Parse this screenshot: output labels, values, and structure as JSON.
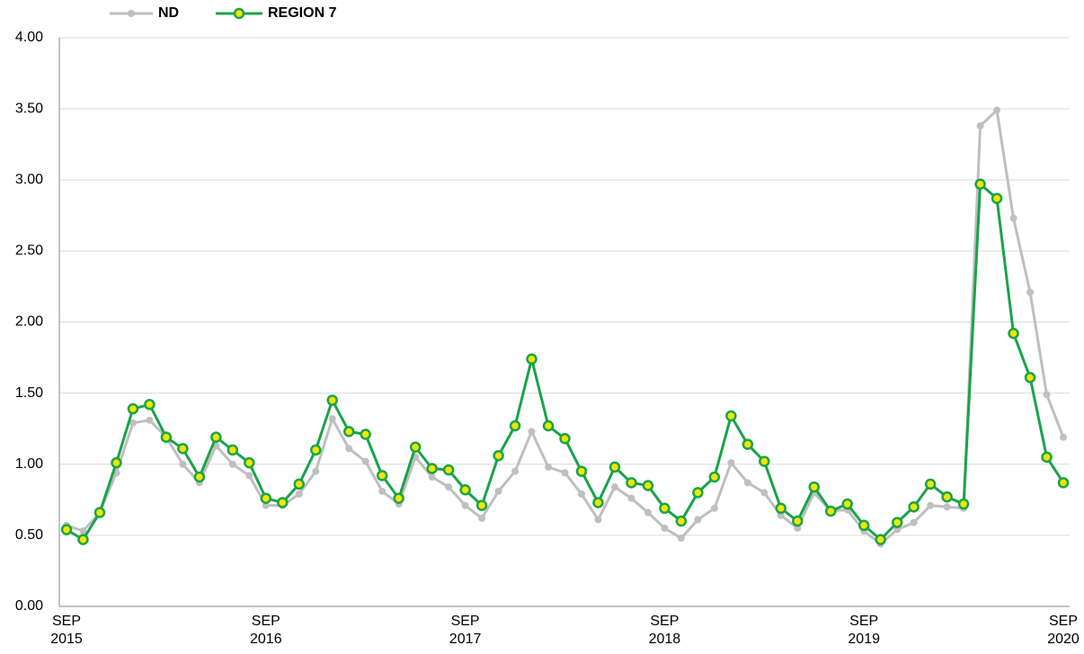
{
  "chart_data": {
    "type": "line",
    "categories": [
      "SEP\n2015",
      null,
      null,
      null,
      null,
      null,
      null,
      null,
      null,
      null,
      null,
      null,
      "SEP\n2016",
      null,
      null,
      null,
      null,
      null,
      null,
      null,
      null,
      null,
      null,
      null,
      "SEP\n2017",
      null,
      null,
      null,
      null,
      null,
      null,
      null,
      null,
      null,
      null,
      null,
      "SEP\n2018",
      null,
      null,
      null,
      null,
      null,
      null,
      null,
      null,
      null,
      null,
      null,
      "SEP\n2019",
      null,
      null,
      null,
      null,
      null,
      null,
      null,
      null,
      null,
      null,
      null,
      "SEP\n2020"
    ],
    "series": [
      {
        "name": "ND",
        "color": "#bfbfbf",
        "values": [
          0.57,
          0.53,
          0.66,
          0.94,
          1.29,
          1.31,
          1.19,
          1.0,
          0.87,
          1.13,
          1.0,
          0.92,
          0.71,
          0.71,
          0.79,
          0.95,
          1.32,
          1.11,
          1.02,
          0.81,
          0.72,
          1.05,
          0.91,
          0.84,
          0.71,
          0.62,
          0.81,
          0.95,
          1.23,
          0.98,
          0.94,
          0.79,
          0.61,
          0.84,
          0.76,
          0.66,
          0.55,
          0.48,
          0.61,
          0.69,
          1.01,
          0.87,
          0.8,
          0.64,
          0.55,
          0.8,
          0.67,
          0.68,
          0.53,
          0.44,
          0.54,
          0.59,
          0.71,
          0.7,
          0.69,
          3.38,
          3.49,
          2.73,
          2.21,
          1.49,
          1.19
        ]
      },
      {
        "name": "REGION 7",
        "color": "#1aa34a",
        "values": [
          0.54,
          0.47,
          0.66,
          1.01,
          1.39,
          1.42,
          1.19,
          1.11,
          0.91,
          1.19,
          1.1,
          1.01,
          0.76,
          0.73,
          0.86,
          1.1,
          1.45,
          1.23,
          1.21,
          0.92,
          0.76,
          1.12,
          0.97,
          0.96,
          0.82,
          0.71,
          1.06,
          1.27,
          1.74,
          1.27,
          1.18,
          0.95,
          0.73,
          0.98,
          0.87,
          0.85,
          0.69,
          0.6,
          0.8,
          0.91,
          1.34,
          1.14,
          1.02,
          0.69,
          0.6,
          0.84,
          0.67,
          0.72,
          0.57,
          0.47,
          0.59,
          0.7,
          0.86,
          0.77,
          0.72,
          2.97,
          2.87,
          1.92,
          1.61,
          1.05,
          0.87
        ]
      }
    ],
    "ylim": [
      0,
      4
    ],
    "yticks": [
      {
        "value": 0,
        "label": "0.00"
      },
      {
        "value": 0.5,
        "label": "0.50"
      },
      {
        "value": 1,
        "label": "1.00"
      },
      {
        "value": 1.5,
        "label": "1.50"
      },
      {
        "value": 2,
        "label": "2.00"
      },
      {
        "value": 2.5,
        "label": "2.50"
      },
      {
        "value": 3,
        "label": "3.00"
      },
      {
        "value": 3.5,
        "label": "3.50"
      },
      {
        "value": 4,
        "label": "4.00"
      }
    ],
    "grid": true
  }
}
